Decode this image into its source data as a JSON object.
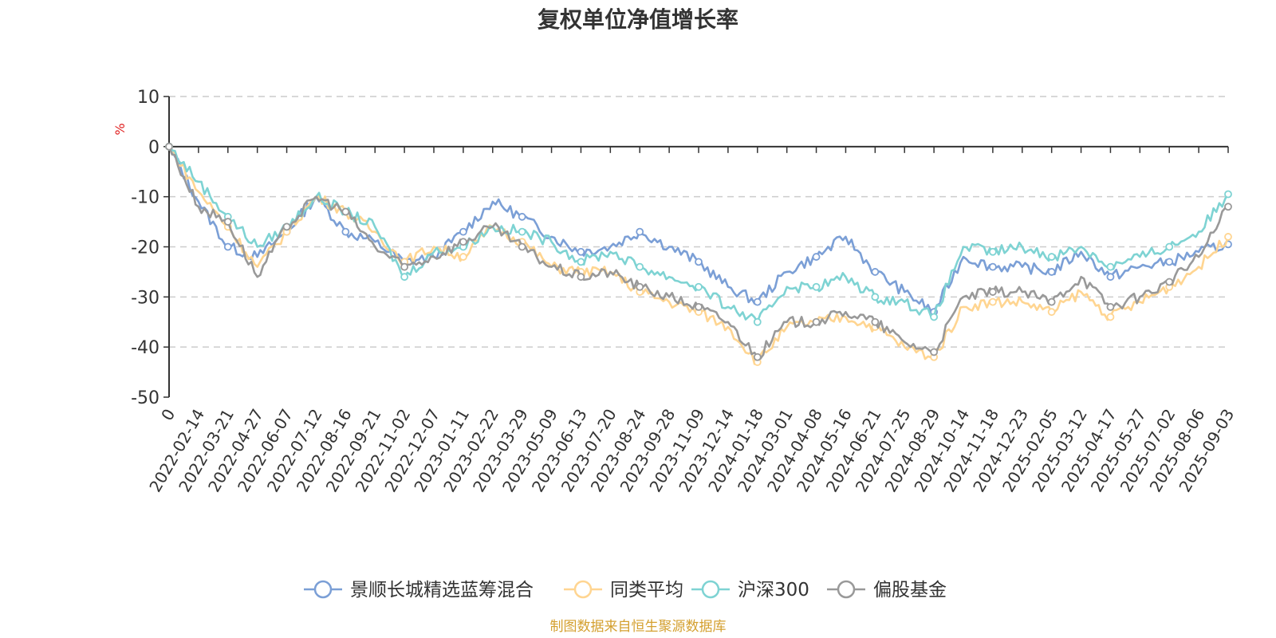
{
  "chart_data": {
    "type": "line",
    "title": "复权单位净值增长率",
    "ylabel": "%",
    "ylim": [
      -50,
      10
    ],
    "yticks": [
      10,
      0,
      -10,
      -20,
      -30,
      -40,
      -50
    ],
    "grid": "horizontal dashed",
    "legend_position": "bottom",
    "source": "制图数据来自恒生聚源数据库",
    "categories": [
      "0",
      "2022-02-14",
      "2022-03-21",
      "2022-04-27",
      "2022-06-07",
      "2022-07-12",
      "2022-08-16",
      "2022-09-21",
      "2022-11-02",
      "2022-12-07",
      "2023-01-11",
      "2023-02-22",
      "2023-03-29",
      "2023-05-09",
      "2023-06-13",
      "2023-07-20",
      "2023-08-24",
      "2023-09-28",
      "2023-11-09",
      "2023-12-14",
      "2024-01-18",
      "2024-03-01",
      "2024-04-08",
      "2024-05-16",
      "2024-06-21",
      "2024-07-25",
      "2024-08-29",
      "2024-10-14",
      "2024-11-18",
      "2024-12-23",
      "2025-02-05",
      "2025-03-12",
      "2025-04-17",
      "2025-05-27",
      "2025-07-02",
      "2025-08-06",
      "2025-09-03"
    ],
    "series": [
      {
        "name": "景顺长城精选蓝筹混合",
        "color": "#7b9fd6",
        "values": [
          0,
          -11,
          -20,
          -22,
          -17,
          -10,
          -17,
          -19,
          -23,
          -22,
          -17,
          -11,
          -14,
          -18,
          -21,
          -20,
          -17,
          -20,
          -23,
          -28,
          -31,
          -25,
          -22,
          -18,
          -25,
          -29,
          -33,
          -22,
          -24,
          -24,
          -25,
          -21,
          -26,
          -24,
          -23,
          -21,
          -19.5
        ]
      },
      {
        "name": "同类平均",
        "color": "#ffd591",
        "values": [
          0,
          -9,
          -16,
          -24,
          -17,
          -10,
          -13,
          -17,
          -23,
          -20,
          -22,
          -16,
          -19,
          -24,
          -25,
          -25,
          -29,
          -31,
          -33,
          -36,
          -43,
          -36,
          -35,
          -34,
          -36,
          -40,
          -42,
          -32,
          -31,
          -31,
          -33,
          -29,
          -34,
          -31,
          -28,
          -24,
          -18
        ]
      },
      {
        "name": "沪深300",
        "color": "#7ed3d3",
        "values": [
          0,
          -7,
          -14,
          -20,
          -16,
          -10,
          -13,
          -16,
          -26,
          -21,
          -20,
          -16,
          -17,
          -19,
          -23,
          -21,
          -24,
          -26,
          -28,
          -32,
          -35,
          -28,
          -28,
          -26,
          -30,
          -31,
          -34,
          -20,
          -21,
          -20,
          -22,
          -20,
          -24,
          -22,
          -20,
          -17,
          -9.5
        ]
      },
      {
        "name": "偏股基金",
        "color": "#999999",
        "values": [
          0,
          -12,
          -15,
          -26,
          -16,
          -10,
          -13,
          -20,
          -24,
          -22,
          -19,
          -16,
          -20,
          -24,
          -26,
          -25,
          -28,
          -30,
          -32,
          -35,
          -42,
          -35,
          -35,
          -33,
          -35,
          -39,
          -41,
          -30,
          -29,
          -29,
          -31,
          -26,
          -32,
          -30,
          -27,
          -22,
          -12
        ]
      }
    ]
  }
}
